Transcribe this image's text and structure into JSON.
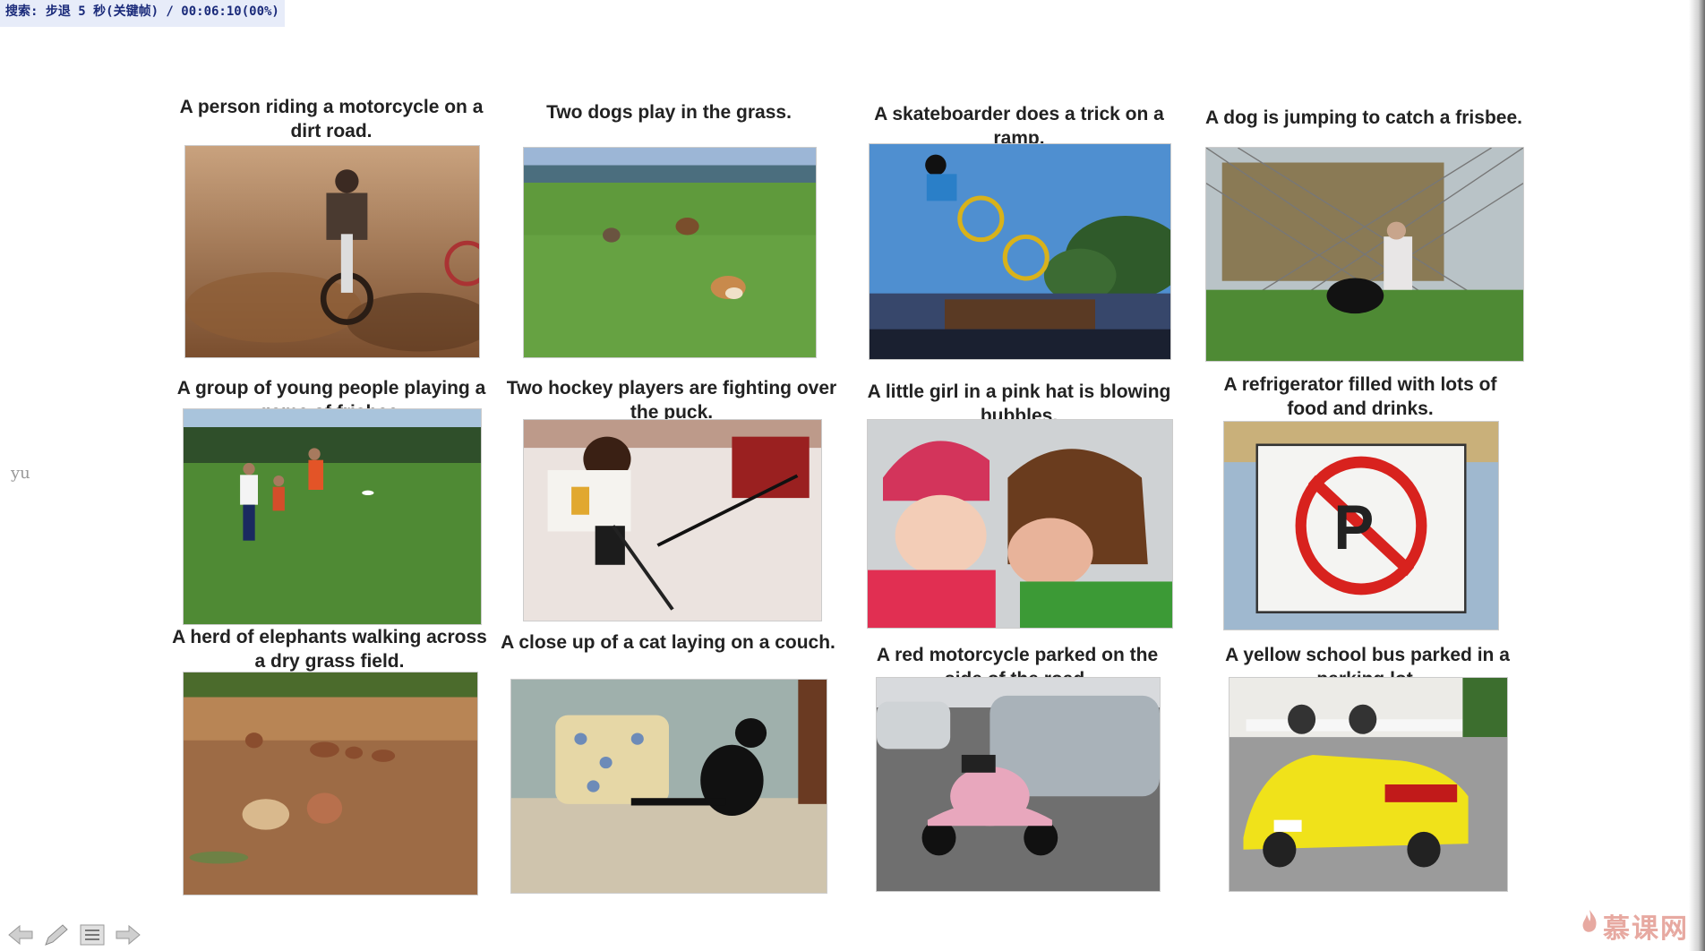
{
  "status": {
    "text": "搜索: 步退 5 秒(关键帧) / 00:06:10(00%)"
  },
  "side_letter": "yu",
  "grid": [
    {
      "caption": "A person riding a motorcycle on a dirt road.",
      "image": "motocross-photo"
    },
    {
      "caption": "Two dogs play in the grass.",
      "image": "dogs-grass-photo"
    },
    {
      "caption": "A skateboarder does a trick on a ramp.",
      "image": "bmx-ramp-photo"
    },
    {
      "caption": "A dog is jumping to catch a frisbee.",
      "image": "dog-frisbee-photo"
    },
    {
      "caption": "A group of young people playing a game of frisbee.",
      "image": "frisbee-group-photo"
    },
    {
      "caption": "Two hockey players are fighting over the puck.",
      "image": "hockey-photo"
    },
    {
      "caption": "A little girl in a pink hat is blowing bubbles.",
      "image": "kids-photo"
    },
    {
      "caption": "A refrigerator filled with lots of food and drinks.",
      "image": "sign-photo"
    },
    {
      "caption": "A herd of elephants walking across a dry grass field.",
      "image": "elephants-photo"
    },
    {
      "caption": "A close up of a cat laying on a couch.",
      "image": "cat-couch-photo"
    },
    {
      "caption": "A red motorcycle parked on the side of the road.",
      "image": "scooter-photo"
    },
    {
      "caption": "A yellow school bus parked in a parking lot.",
      "image": "yellow-car-photo"
    }
  ],
  "toolbar": {
    "icons": [
      "arrow-left-icon",
      "pen-icon",
      "menu-icon",
      "arrow-right-icon"
    ]
  },
  "brand": {
    "text": "慕课网",
    "icon": "flame-icon",
    "color": "#e7a9a1"
  }
}
